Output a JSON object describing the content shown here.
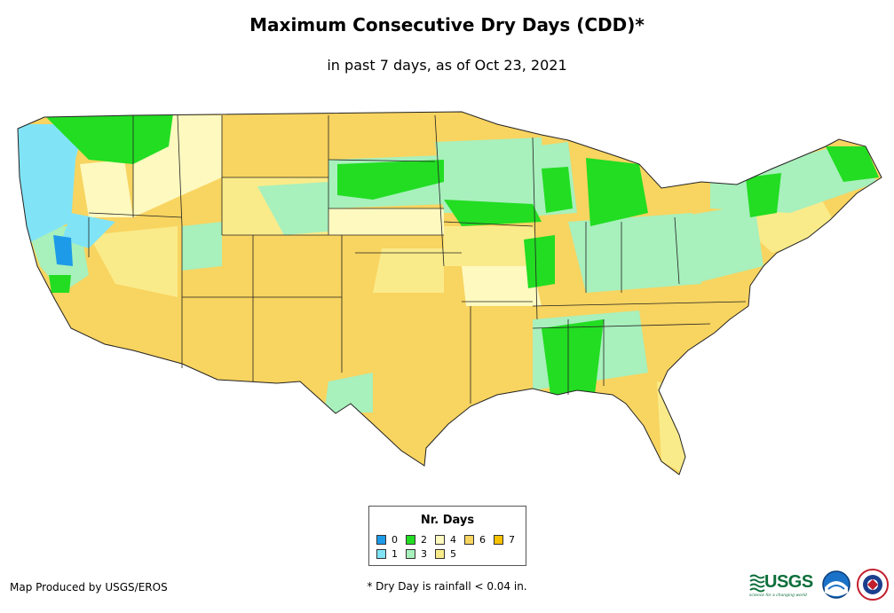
{
  "title": "Maximum Consecutive Dry Days (CDD)*",
  "subtitle": "in past 7 days, as of Oct 23, 2021",
  "legend": {
    "title": "Nr. Days",
    "items": [
      {
        "label": "0",
        "color": "#1e9be8"
      },
      {
        "label": "1",
        "color": "#80e4f6"
      },
      {
        "label": "2",
        "color": "#22dd22"
      },
      {
        "label": "3",
        "color": "#a8f0bc"
      },
      {
        "label": "4",
        "color": "#fdf9bf"
      },
      {
        "label": "5",
        "color": "#faeb8a"
      },
      {
        "label": "6",
        "color": "#f8d460"
      },
      {
        "label": "7",
        "color": "#f7c200"
      }
    ]
  },
  "credit": "Map Produced by USGS/EROS",
  "footnote": "* Dry Day is rainfall < 0.04 in.",
  "logos": {
    "usgs": "USGS",
    "usgs_tagline": "science for a changing world",
    "noaa": "NOAA",
    "nws": "National Weather Service"
  }
}
